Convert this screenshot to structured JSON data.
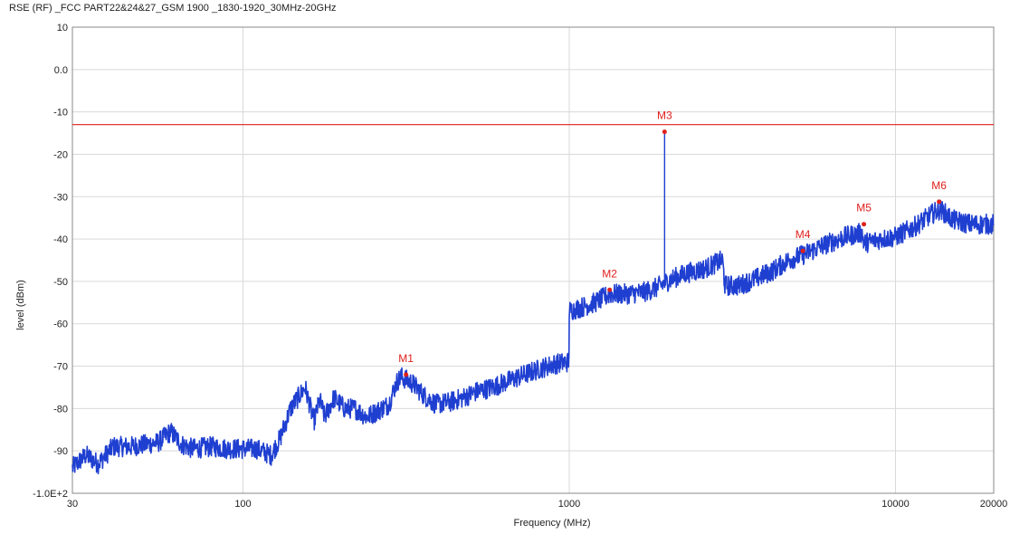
{
  "chart_data": {
    "type": "line",
    "title": "RSE (RF)  _FCC PART22&24&27_GSM 1900 _1830-1920_30MHz-20GHz",
    "xlabel": "Frequency (MHz)",
    "ylabel": "level (dBm)",
    "x_scale": "log",
    "xlim": [
      30,
      20000
    ],
    "ylim": [
      -100,
      10
    ],
    "x_ticks": [
      {
        "value": 30,
        "label": "30"
      },
      {
        "value": 100,
        "label": "100"
      },
      {
        "value": 1000,
        "label": "1000"
      },
      {
        "value": 10000,
        "label": "10000"
      },
      {
        "value": 20000,
        "label": "20000"
      }
    ],
    "y_ticks": [
      {
        "value": 10,
        "label": "10"
      },
      {
        "value": 0,
        "label": "0.0"
      },
      {
        "value": -10,
        "label": "-10"
      },
      {
        "value": -20,
        "label": "-20"
      },
      {
        "value": -30,
        "label": "-30"
      },
      {
        "value": -40,
        "label": "-40"
      },
      {
        "value": -50,
        "label": "-50"
      },
      {
        "value": -60,
        "label": "-60"
      },
      {
        "value": -70,
        "label": "-70"
      },
      {
        "value": -80,
        "label": "-80"
      },
      {
        "value": -90,
        "label": "-90"
      },
      {
        "value": -100,
        "label": "-1.0E+2"
      }
    ],
    "grid": true,
    "limit_line": {
      "value": -13,
      "color": "#e0201c"
    },
    "series": [
      {
        "color": "#1f3fd1",
        "points": [
          [
            30,
            -94
          ],
          [
            33,
            -91
          ],
          [
            36,
            -93
          ],
          [
            40,
            -89
          ],
          [
            45,
            -89
          ],
          [
            50,
            -88.5
          ],
          [
            55,
            -88
          ],
          [
            60,
            -85.5
          ],
          [
            65,
            -88.5
          ],
          [
            70,
            -89.5
          ],
          [
            80,
            -89
          ],
          [
            90,
            -89.5
          ],
          [
            100,
            -89.5
          ],
          [
            110,
            -89.5
          ],
          [
            122,
            -91
          ],
          [
            130,
            -87
          ],
          [
            140,
            -80
          ],
          [
            155,
            -75
          ],
          [
            165,
            -83
          ],
          [
            172,
            -78
          ],
          [
            178,
            -82
          ],
          [
            190,
            -77.5
          ],
          [
            205,
            -80
          ],
          [
            220,
            -80
          ],
          [
            240,
            -82
          ],
          [
            260,
            -80.5
          ],
          [
            280,
            -79
          ],
          [
            295,
            -74
          ],
          [
            305,
            -72.5
          ],
          [
            330,
            -74
          ],
          [
            360,
            -77
          ],
          [
            390,
            -79
          ],
          [
            430,
            -78.5
          ],
          [
            470,
            -77.5
          ],
          [
            520,
            -76
          ],
          [
            580,
            -75
          ],
          [
            650,
            -73.5
          ],
          [
            730,
            -72
          ],
          [
            820,
            -70.5
          ],
          [
            900,
            -69.5
          ],
          [
            998,
            -69
          ],
          [
            1000,
            -57
          ],
          [
            1100,
            -56
          ],
          [
            1200,
            -55
          ],
          [
            1330,
            -53
          ],
          [
            1500,
            -53
          ],
          [
            1700,
            -52.5
          ],
          [
            1850,
            -51.5
          ],
          [
            1950,
            -50.5
          ],
          [
            2050,
            -49.5
          ],
          [
            2300,
            -48
          ],
          [
            2600,
            -47
          ],
          [
            2950,
            -45
          ],
          [
            3000,
            -51
          ],
          [
            3300,
            -51
          ],
          [
            3700,
            -49.5
          ],
          [
            4200,
            -47.5
          ],
          [
            4700,
            -45
          ],
          [
            5300,
            -43.5
          ],
          [
            6000,
            -41.5
          ],
          [
            7000,
            -39.5
          ],
          [
            7900,
            -38.5
          ],
          [
            8000,
            -41
          ],
          [
            9000,
            -40
          ],
          [
            10000,
            -39.5
          ],
          [
            11500,
            -37
          ],
          [
            13000,
            -34
          ],
          [
            13700,
            -33
          ],
          [
            15000,
            -35.5
          ],
          [
            17000,
            -36.5
          ],
          [
            20000,
            -36.5
          ]
        ]
      }
    ],
    "markers": [
      {
        "label": "M1",
        "x": 316,
        "y": -72
      },
      {
        "label": "M2",
        "x": 1330,
        "y": -52
      },
      {
        "label": "M3",
        "x": 1960,
        "y": -14.7
      },
      {
        "label": "M4",
        "x": 5200,
        "y": -42.8
      },
      {
        "label": "M5",
        "x": 8000,
        "y": -36.5
      },
      {
        "label": "M6",
        "x": 13600,
        "y": -31.2
      }
    ],
    "colors": {
      "grid": "#d9d9d9",
      "axis": "#888888",
      "marker": "#e0201c"
    }
  }
}
